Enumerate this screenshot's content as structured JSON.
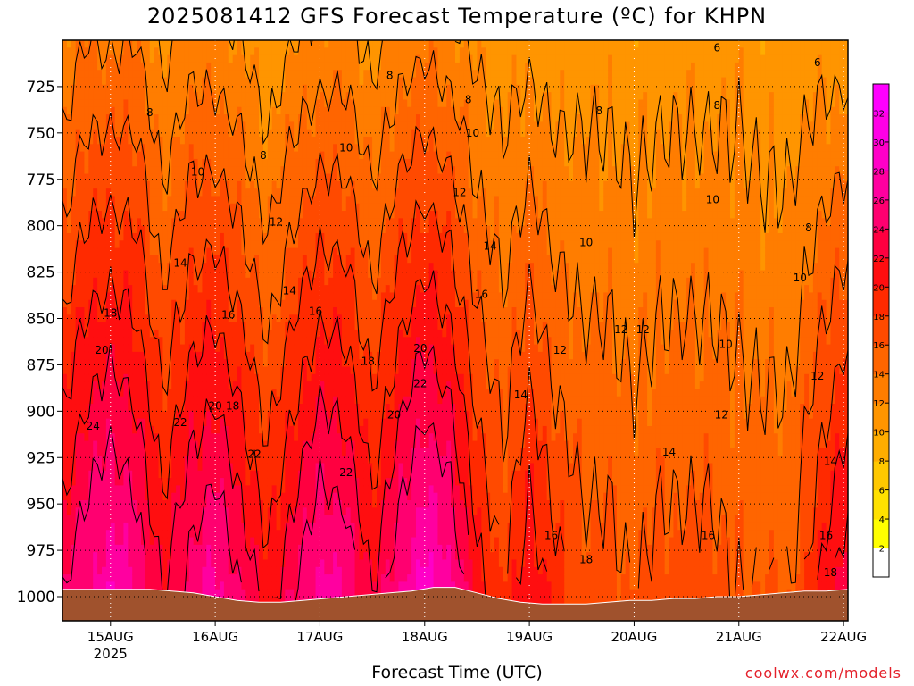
{
  "title": "2025081412 GFS Forecast Temperature (ºC) for KHPN",
  "xlabel": "Forecast Time (UTC)",
  "credit": "coolwx.com/models",
  "chart_data": {
    "type": "heatmap",
    "title": "2025081412 GFS Forecast Temperature (ºC) for KHPN",
    "xlabel": "Forecast Time (UTC)",
    "ylabel": "",
    "y_ticks": [
      725,
      750,
      775,
      800,
      825,
      850,
      875,
      900,
      925,
      950,
      975,
      1000
    ],
    "y_range": [
      700,
      1013
    ],
    "y_inverted": true,
    "x_ticks": [
      {
        "label": "15AUG",
        "sub": "2025",
        "hour": 12
      },
      {
        "label": "16AUG",
        "sub": "",
        "hour": 36
      },
      {
        "label": "17AUG",
        "sub": "",
        "hour": 60
      },
      {
        "label": "18AUG",
        "sub": "",
        "hour": 84
      },
      {
        "label": "19AUG",
        "sub": "",
        "hour": 108
      },
      {
        "label": "20AUG",
        "sub": "",
        "hour": 132
      },
      {
        "label": "21AUG",
        "sub": "",
        "hour": 156
      },
      {
        "label": "22AUG",
        "sub": "",
        "hour": 180
      }
    ],
    "x_range_hours": [
      1,
      181
    ],
    "grid": true,
    "colorbar": {
      "ticks": [
        2,
        4,
        6,
        8,
        10,
        12,
        14,
        16,
        18,
        20,
        22,
        24,
        26,
        28,
        30,
        32
      ],
      "colors": [
        "#ffffff",
        "#ffff00",
        "#ffe100",
        "#ffc800",
        "#ffad00",
        "#ff9500",
        "#ff7d00",
        "#ff6500",
        "#ff4a00",
        "#ff2a00",
        "#ff0e10",
        "#ff0040",
        "#ff0070",
        "#ff00a0",
        "#ff00c8",
        "#ff00e6",
        "#ff00ff"
      ]
    },
    "ground_color": "#a0522d",
    "ground_pressure_hpa": [
      996,
      996,
      996,
      996,
      996,
      997,
      998,
      1000,
      1002,
      1003,
      1003,
      1002,
      1001,
      1000,
      999,
      998,
      997,
      995,
      995,
      998,
      1001,
      1003,
      1004,
      1004,
      1004,
      1003,
      1002,
      1002,
      1001,
      1001,
      1000,
      1000,
      999,
      998,
      997,
      997,
      996
    ],
    "contour_levels": [
      6,
      8,
      10,
      12,
      14,
      16,
      18,
      20,
      22,
      24
    ],
    "temperature_profile": {
      "hours": [
        1,
        6,
        12,
        18,
        24,
        30,
        36,
        42,
        48,
        54,
        60,
        66,
        72,
        78,
        84,
        90,
        96,
        102,
        108,
        114,
        120,
        126,
        132,
        138,
        144,
        150,
        156,
        162,
        168,
        174,
        181
      ],
      "surface_temp": [
        24,
        26,
        28,
        26,
        22,
        25,
        27,
        24,
        21,
        24,
        27,
        26,
        22,
        26,
        29,
        27,
        21,
        18,
        22,
        19,
        17,
        17,
        16,
        17,
        17,
        17,
        16,
        16,
        16,
        20,
        24
      ],
      "lapse_per_25hPa": [
        1.0,
        1.0,
        1.2,
        1.0,
        0.9,
        1.0,
        1.2,
        1.0,
        0.9,
        1.0,
        1.2,
        1.1,
        0.9,
        1.1,
        1.3,
        1.2,
        0.8,
        0.6,
        0.9,
        0.7,
        0.5,
        0.5,
        0.45,
        0.5,
        0.5,
        0.5,
        0.4,
        0.45,
        0.45,
        0.75,
        1.1
      ]
    },
    "contour_labels": [
      {
        "t": "6",
        "h": 151,
        "p": 706
      },
      {
        "t": "6",
        "h": 174,
        "p": 714
      },
      {
        "t": "8",
        "h": 21,
        "p": 741
      },
      {
        "t": "8",
        "h": 47,
        "p": 764
      },
      {
        "t": "8",
        "h": 76,
        "p": 721
      },
      {
        "t": "8",
        "h": 94,
        "p": 734
      },
      {
        "t": "8",
        "h": 124,
        "p": 740
      },
      {
        "t": "8",
        "h": 151,
        "p": 737
      },
      {
        "t": "8",
        "h": 172,
        "p": 803
      },
      {
        "t": "10",
        "h": 32,
        "p": 773
      },
      {
        "t": "10",
        "h": 66,
        "p": 760
      },
      {
        "t": "10",
        "h": 95,
        "p": 752
      },
      {
        "t": "10",
        "h": 150,
        "p": 788
      },
      {
        "t": "10",
        "h": 121,
        "p": 811
      },
      {
        "t": "10",
        "h": 170,
        "p": 830
      },
      {
        "t": "10",
        "h": 153,
        "p": 866
      },
      {
        "t": "12",
        "h": 50,
        "p": 800
      },
      {
        "t": "12",
        "h": 92,
        "p": 784
      },
      {
        "t": "12",
        "h": 129,
        "p": 858
      },
      {
        "t": "12",
        "h": 134,
        "p": 858
      },
      {
        "t": "12",
        "h": 115,
        "p": 869
      },
      {
        "t": "12",
        "h": 152,
        "p": 904
      },
      {
        "t": "12",
        "h": 174,
        "p": 883
      },
      {
        "t": "14",
        "h": 28,
        "p": 822
      },
      {
        "t": "14",
        "h": 53,
        "p": 837
      },
      {
        "t": "14",
        "h": 99,
        "p": 813
      },
      {
        "t": "14",
        "h": 106,
        "p": 893
      },
      {
        "t": "14",
        "h": 140,
        "p": 924
      },
      {
        "t": "14",
        "h": 177,
        "p": 929
      },
      {
        "t": "16",
        "h": 39,
        "p": 850
      },
      {
        "t": "16",
        "h": 59,
        "p": 848
      },
      {
        "t": "16",
        "h": 97,
        "p": 839
      },
      {
        "t": "16",
        "h": 113,
        "p": 969
      },
      {
        "t": "16",
        "h": 149,
        "p": 969
      },
      {
        "t": "16",
        "h": 176,
        "p": 969
      },
      {
        "t": "18",
        "h": 12,
        "p": 849
      },
      {
        "t": "18",
        "h": 71,
        "p": 875
      },
      {
        "t": "18",
        "h": 40,
        "p": 899
      },
      {
        "t": "18",
        "h": 121,
        "p": 982
      },
      {
        "t": "18",
        "h": 177,
        "p": 989
      },
      {
        "t": "20",
        "h": 10,
        "p": 869
      },
      {
        "t": "20",
        "h": 36,
        "p": 899
      },
      {
        "t": "20",
        "h": 77,
        "p": 904
      },
      {
        "t": "20",
        "h": 83,
        "p": 868
      },
      {
        "t": "22",
        "h": 28,
        "p": 908
      },
      {
        "t": "22",
        "h": 45,
        "p": 925
      },
      {
        "t": "22",
        "h": 66,
        "p": 935
      },
      {
        "t": "22",
        "h": 83,
        "p": 887
      },
      {
        "t": "24",
        "h": 8,
        "p": 910
      }
    ]
  }
}
